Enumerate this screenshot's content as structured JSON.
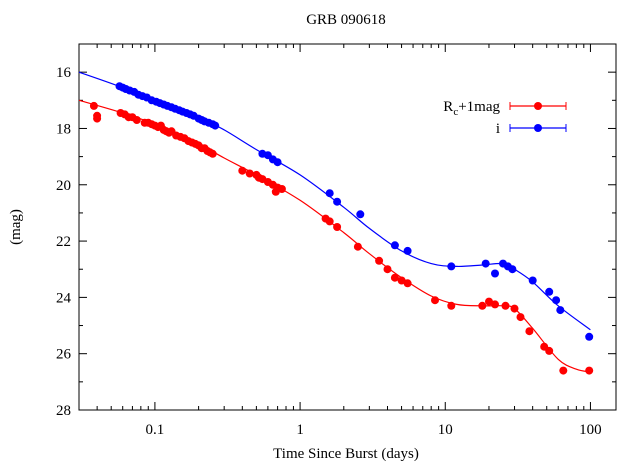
{
  "chart_data": {
    "type": "scatter",
    "title": "GRB 090618",
    "xlabel": "Time Since Burst (days)",
    "ylabel": "(mag)",
    "xscale": "log",
    "xlim": [
      0.03,
      150
    ],
    "ylim": [
      28,
      15
    ],
    "y_inverted": true,
    "grid": false,
    "legend_position": "top-right",
    "x_ticks": [
      0.1,
      1,
      10,
      100
    ],
    "x_tick_labels": [
      "0.1",
      "1",
      "10",
      "100"
    ],
    "y_ticks": [
      16,
      18,
      20,
      22,
      24,
      26,
      28
    ],
    "y_tick_labels": [
      "16",
      "18",
      "20",
      "22",
      "24",
      "26",
      "28"
    ],
    "series": [
      {
        "name": "R_c+1mag",
        "legend_main": "R",
        "legend_sub": "c",
        "legend_rest": "+1mag",
        "color": "#ff0000",
        "points": [
          [
            0.038,
            17.2
          ],
          [
            0.04,
            17.55
          ],
          [
            0.04,
            17.65
          ],
          [
            0.058,
            17.45
          ],
          [
            0.062,
            17.5
          ],
          [
            0.066,
            17.6
          ],
          [
            0.07,
            17.6
          ],
          [
            0.075,
            17.7
          ],
          [
            0.085,
            17.8
          ],
          [
            0.09,
            17.8
          ],
          [
            0.095,
            17.85
          ],
          [
            0.1,
            17.9
          ],
          [
            0.105,
            17.95
          ],
          [
            0.11,
            17.9
          ],
          [
            0.115,
            18.05
          ],
          [
            0.12,
            18.1
          ],
          [
            0.125,
            18.15
          ],
          [
            0.13,
            18.1
          ],
          [
            0.14,
            18.25
          ],
          [
            0.15,
            18.3
          ],
          [
            0.16,
            18.35
          ],
          [
            0.17,
            18.45
          ],
          [
            0.18,
            18.5
          ],
          [
            0.19,
            18.55
          ],
          [
            0.2,
            18.6
          ],
          [
            0.21,
            18.7
          ],
          [
            0.22,
            18.7
          ],
          [
            0.23,
            18.8
          ],
          [
            0.24,
            18.85
          ],
          [
            0.25,
            18.9
          ],
          [
            0.4,
            19.5
          ],
          [
            0.45,
            19.6
          ],
          [
            0.5,
            19.65
          ],
          [
            0.52,
            19.75
          ],
          [
            0.55,
            19.8
          ],
          [
            0.6,
            19.9
          ],
          [
            0.65,
            20.0
          ],
          [
            0.7,
            20.1
          ],
          [
            0.75,
            20.15
          ],
          [
            0.68,
            20.25
          ],
          [
            1.5,
            21.2
          ],
          [
            1.6,
            21.3
          ],
          [
            1.8,
            21.5
          ],
          [
            2.5,
            22.2
          ],
          [
            3.5,
            22.7
          ],
          [
            4.0,
            23.0
          ],
          [
            4.5,
            23.3
          ],
          [
            5.0,
            23.4
          ],
          [
            5.5,
            23.5
          ],
          [
            8.5,
            24.1
          ],
          [
            11,
            24.3
          ],
          [
            18,
            24.3
          ],
          [
            20,
            24.15
          ],
          [
            22,
            24.25
          ],
          [
            26,
            24.3
          ],
          [
            30,
            24.4
          ],
          [
            33,
            24.7
          ],
          [
            38,
            25.2
          ],
          [
            48,
            25.75
          ],
          [
            52,
            25.9
          ],
          [
            65,
            26.6
          ],
          [
            98,
            26.6
          ]
        ],
        "curve": [
          [
            0.03,
            17.0
          ],
          [
            0.06,
            17.45
          ],
          [
            0.1,
            17.85
          ],
          [
            0.2,
            18.55
          ],
          [
            0.3,
            19.05
          ],
          [
            0.5,
            19.65
          ],
          [
            1.0,
            20.55
          ],
          [
            2.0,
            21.7
          ],
          [
            3.0,
            22.45
          ],
          [
            5.0,
            23.3
          ],
          [
            8.0,
            23.95
          ],
          [
            12,
            24.25
          ],
          [
            18,
            24.3
          ],
          [
            25,
            24.3
          ],
          [
            30,
            24.4
          ],
          [
            40,
            25.1
          ],
          [
            60,
            26.2
          ],
          [
            80,
            26.55
          ],
          [
            100,
            26.65
          ]
        ]
      },
      {
        "name": "i",
        "legend_main": "i",
        "legend_sub": "",
        "legend_rest": "",
        "color": "#0000ff",
        "points": [
          [
            0.057,
            16.5
          ],
          [
            0.06,
            16.55
          ],
          [
            0.063,
            16.6
          ],
          [
            0.067,
            16.65
          ],
          [
            0.072,
            16.7
          ],
          [
            0.077,
            16.8
          ],
          [
            0.082,
            16.85
          ],
          [
            0.088,
            16.9
          ],
          [
            0.095,
            17.0
          ],
          [
            0.102,
            17.05
          ],
          [
            0.108,
            17.1
          ],
          [
            0.115,
            17.15
          ],
          [
            0.122,
            17.2
          ],
          [
            0.13,
            17.25
          ],
          [
            0.138,
            17.3
          ],
          [
            0.147,
            17.35
          ],
          [
            0.155,
            17.4
          ],
          [
            0.165,
            17.45
          ],
          [
            0.175,
            17.5
          ],
          [
            0.185,
            17.55
          ],
          [
            0.2,
            17.65
          ],
          [
            0.21,
            17.7
          ],
          [
            0.22,
            17.75
          ],
          [
            0.235,
            17.8
          ],
          [
            0.25,
            17.85
          ],
          [
            0.26,
            17.9
          ],
          [
            0.55,
            18.9
          ],
          [
            0.6,
            18.95
          ],
          [
            0.65,
            19.1
          ],
          [
            0.7,
            19.2
          ],
          [
            1.6,
            20.3
          ],
          [
            1.8,
            20.6
          ],
          [
            2.6,
            21.05
          ],
          [
            4.5,
            22.15
          ],
          [
            5.5,
            22.35
          ],
          [
            11,
            22.9
          ],
          [
            19,
            22.8
          ],
          [
            22,
            23.15
          ],
          [
            25,
            22.8
          ],
          [
            27,
            22.9
          ],
          [
            29,
            23.0
          ],
          [
            40,
            23.4
          ],
          [
            52,
            23.8
          ],
          [
            58,
            24.1
          ],
          [
            62,
            24.45
          ],
          [
            98,
            25.4
          ]
        ],
        "curve": [
          [
            0.03,
            16.0
          ],
          [
            0.06,
            16.55
          ],
          [
            0.1,
            17.0
          ],
          [
            0.2,
            17.6
          ],
          [
            0.3,
            18.05
          ],
          [
            0.5,
            18.75
          ],
          [
            1.0,
            19.65
          ],
          [
            2.0,
            20.8
          ],
          [
            3.0,
            21.55
          ],
          [
            5.0,
            22.35
          ],
          [
            8.0,
            22.8
          ],
          [
            12,
            22.9
          ],
          [
            18,
            22.85
          ],
          [
            25,
            22.8
          ],
          [
            30,
            23.0
          ],
          [
            40,
            23.45
          ],
          [
            60,
            24.3
          ],
          [
            100,
            25.15
          ]
        ]
      }
    ]
  }
}
